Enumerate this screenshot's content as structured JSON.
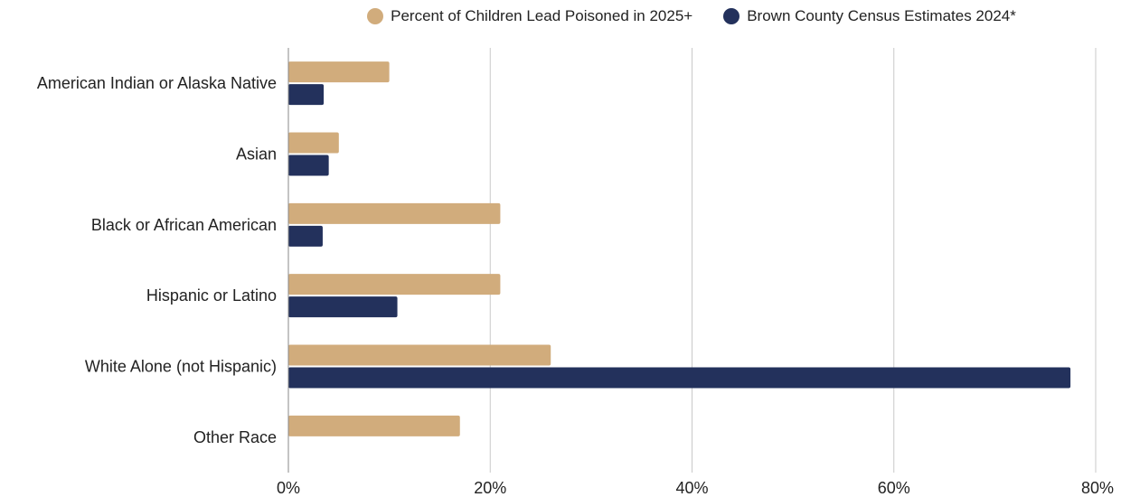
{
  "chart_data": {
    "type": "bar",
    "orientation": "horizontal",
    "categories": [
      "American Indian or Alaska Native",
      "Asian",
      "Black or African American",
      "Hispanic or Latino",
      "White Alone (not Hispanic)",
      "Other Race"
    ],
    "series": [
      {
        "name": "Percent of Children Lead Poisoned in 2025+",
        "color": "#d1ac7c",
        "values": [
          10,
          5,
          21,
          21,
          26,
          17
        ]
      },
      {
        "name": "Brown County Census Estimates 2024*",
        "color": "#23315c",
        "values": [
          3.5,
          4,
          3.4,
          10.8,
          77.5,
          null
        ]
      }
    ],
    "xlim": [
      0,
      80
    ],
    "xticks": [
      0,
      20,
      40,
      60,
      80
    ],
    "xtick_labels": [
      "0%",
      "20%",
      "40%",
      "60%",
      "80%"
    ],
    "grid": "vertical",
    "legend_position": "top"
  }
}
